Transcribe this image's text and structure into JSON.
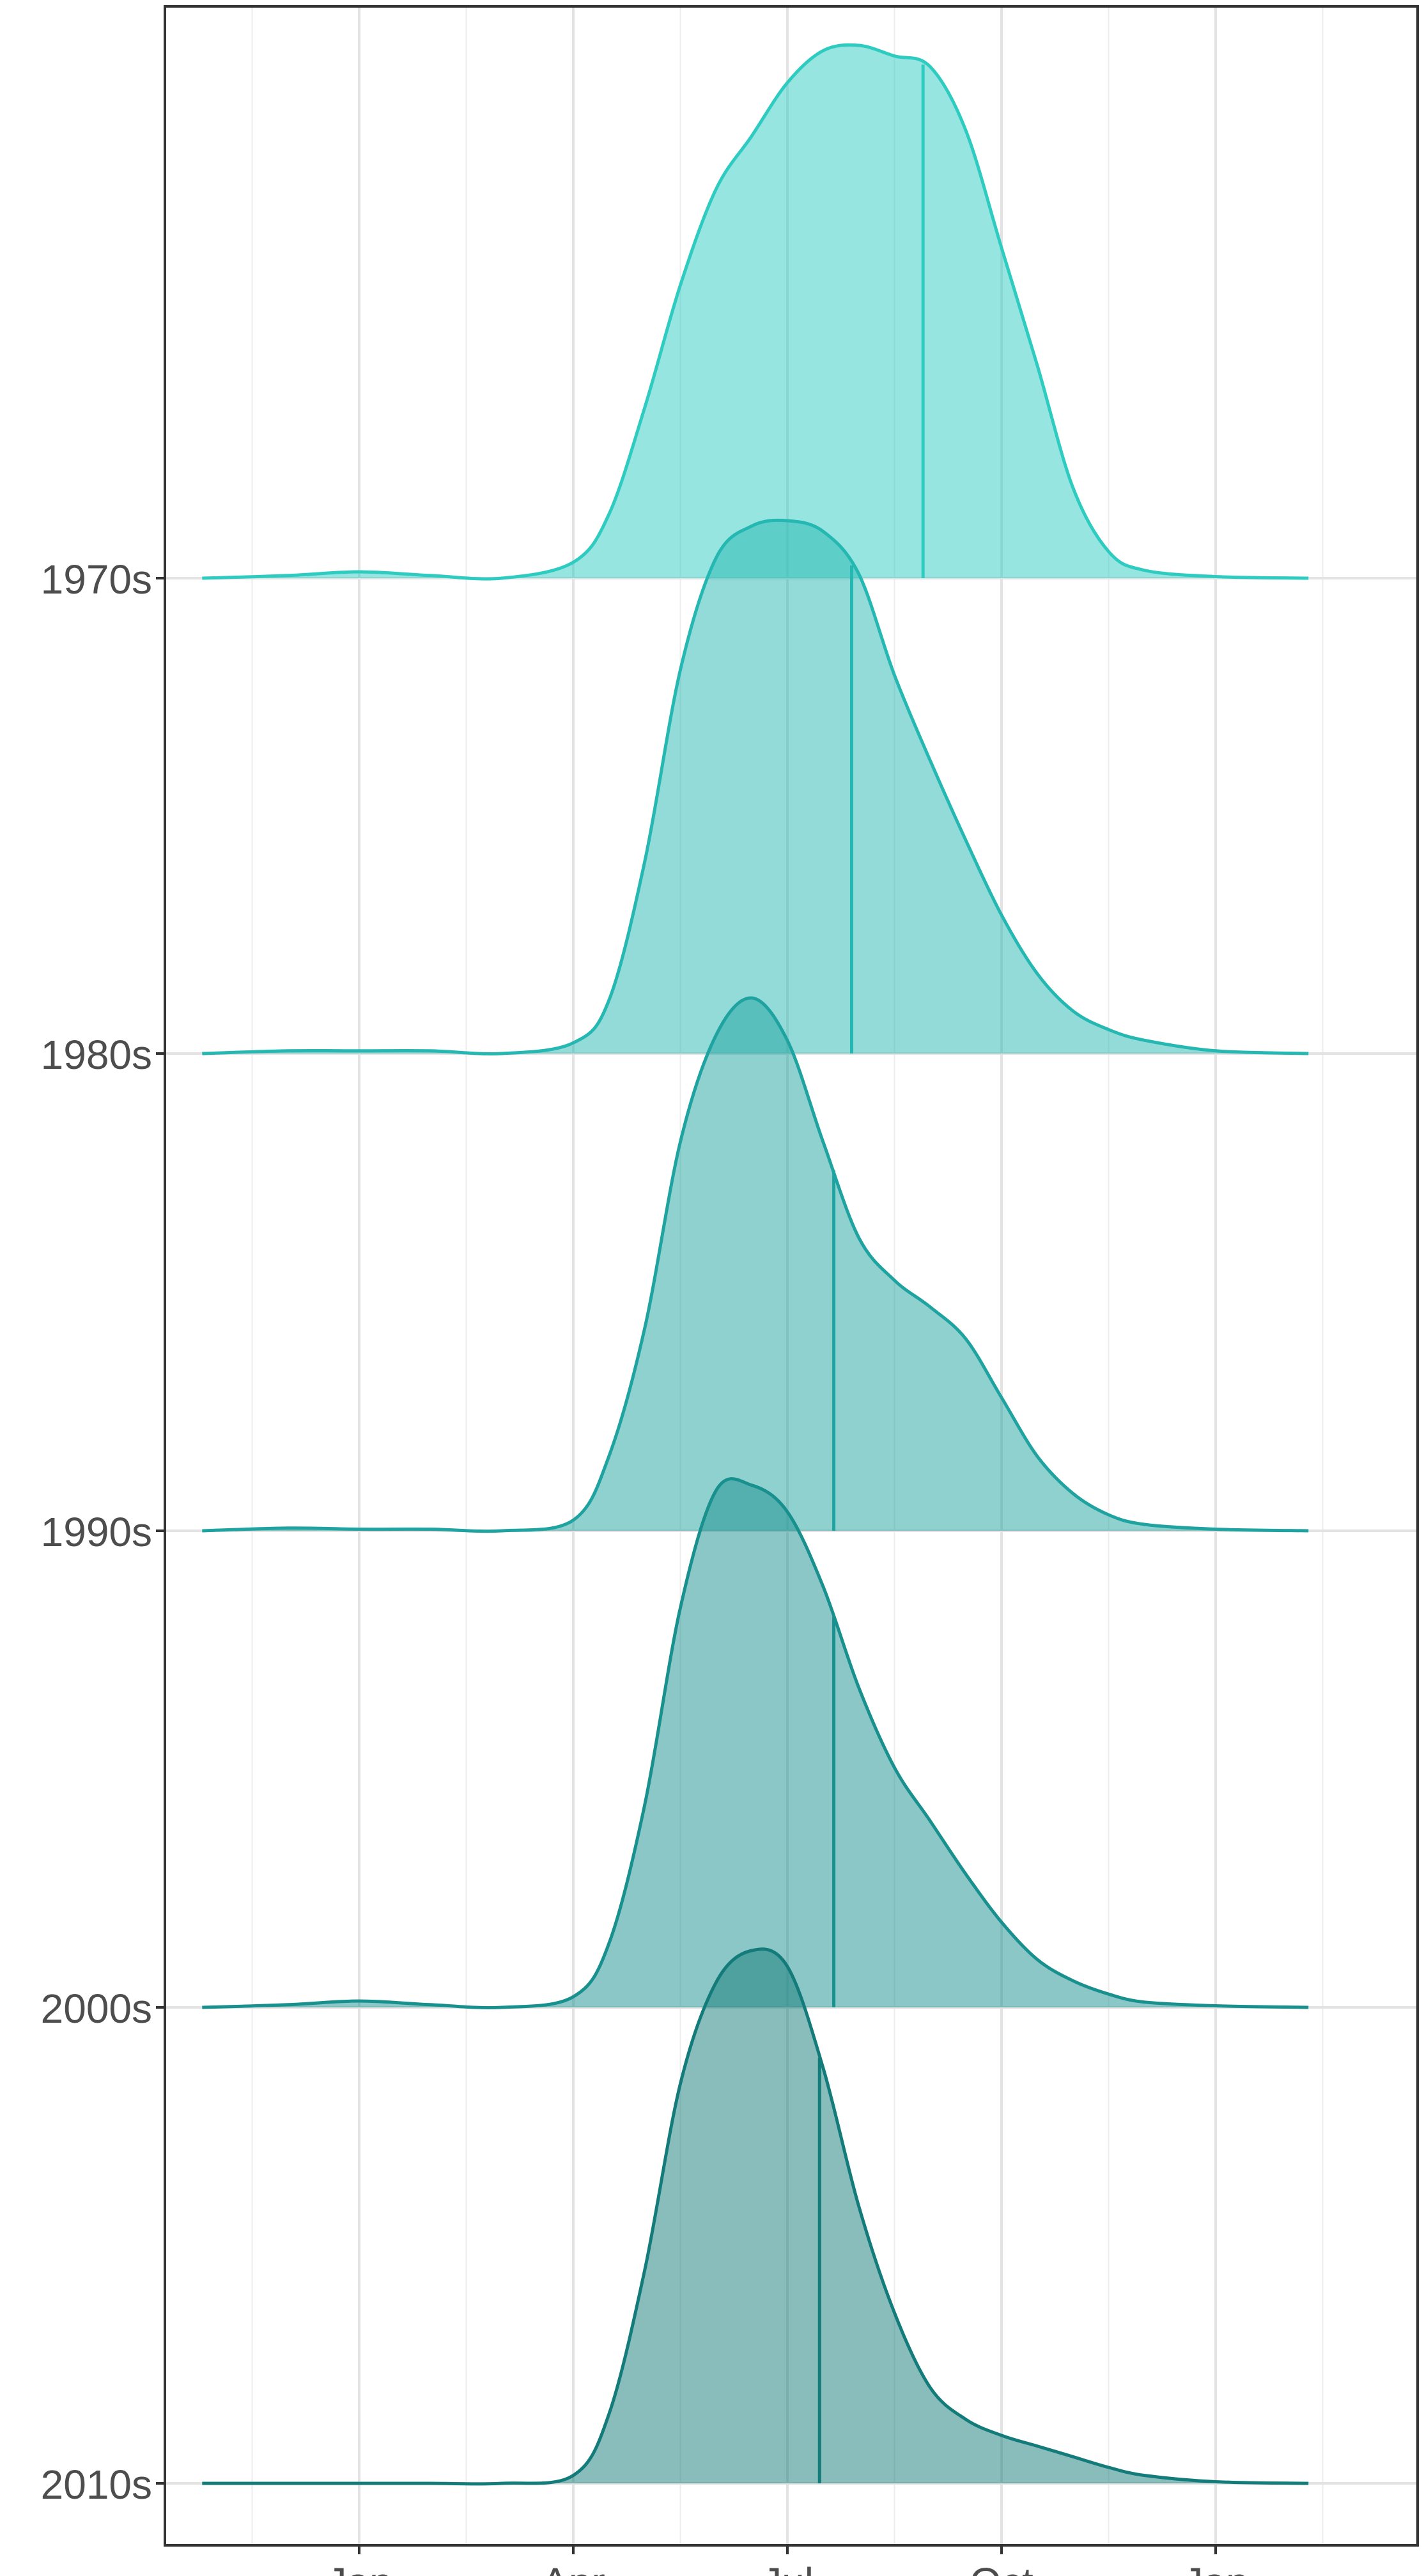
{
  "chart_data": {
    "type": "area",
    "subtype": "ridgeline-density",
    "title": "",
    "xlabel": "",
    "ylabel": "",
    "x_ticks": [
      "Jan",
      "Apr",
      "Jul",
      "Oct",
      "Jan"
    ],
    "y_ticks": [
      "1970s",
      "1980s",
      "1990s",
      "2000s",
      "2010s"
    ],
    "grid": true,
    "legend": "none",
    "series": [
      {
        "name": "1970s",
        "color": "#2ECBC1",
        "median_month": 8.9,
        "points": [
          [
            -1.2,
            0
          ],
          [
            0,
            0.005
          ],
          [
            1,
            0.012
          ],
          [
            2,
            0.005
          ],
          [
            3,
            0
          ],
          [
            4,
            0.03
          ],
          [
            4.5,
            0.12
          ],
          [
            5,
            0.32
          ],
          [
            5.5,
            0.55
          ],
          [
            6,
            0.73
          ],
          [
            6.5,
            0.83
          ],
          [
            7,
            0.93
          ],
          [
            7.5,
            0.99
          ],
          [
            8,
            1.0
          ],
          [
            8.5,
            0.98
          ],
          [
            9,
            0.96
          ],
          [
            9.5,
            0.84
          ],
          [
            10,
            0.62
          ],
          [
            10.5,
            0.4
          ],
          [
            11,
            0.17
          ],
          [
            11.5,
            0.05
          ],
          [
            12,
            0.015
          ],
          [
            13,
            0.003
          ],
          [
            14.3,
            0
          ]
        ]
      },
      {
        "name": "1980s",
        "color": "#25B7B1",
        "median_month": 7.9,
        "points": [
          [
            -1.2,
            0
          ],
          [
            0,
            0.005
          ],
          [
            1,
            0.005
          ],
          [
            2,
            0.005
          ],
          [
            3,
            0
          ],
          [
            4,
            0.02
          ],
          [
            4.5,
            0.1
          ],
          [
            5,
            0.36
          ],
          [
            5.5,
            0.72
          ],
          [
            6,
            0.93
          ],
          [
            6.5,
            0.99
          ],
          [
            7,
            1.0
          ],
          [
            7.5,
            0.98
          ],
          [
            8,
            0.9
          ],
          [
            8.5,
            0.71
          ],
          [
            9,
            0.55
          ],
          [
            9.5,
            0.4
          ],
          [
            10,
            0.26
          ],
          [
            10.5,
            0.15
          ],
          [
            11,
            0.08
          ],
          [
            11.5,
            0.045
          ],
          [
            12,
            0.025
          ],
          [
            13,
            0.005
          ],
          [
            14.3,
            0
          ]
        ]
      },
      {
        "name": "1990s",
        "color": "#1FA3A0",
        "median_month": 7.65,
        "points": [
          [
            -1.2,
            0
          ],
          [
            0,
            0.005
          ],
          [
            1,
            0.003
          ],
          [
            2,
            0.003
          ],
          [
            3,
            0
          ],
          [
            4,
            0.02
          ],
          [
            4.5,
            0.14
          ],
          [
            5,
            0.38
          ],
          [
            5.5,
            0.73
          ],
          [
            6,
            0.93
          ],
          [
            6.5,
            1.0
          ],
          [
            7,
            0.92
          ],
          [
            7.5,
            0.73
          ],
          [
            8,
            0.55
          ],
          [
            8.5,
            0.47
          ],
          [
            9,
            0.42
          ],
          [
            9.5,
            0.36
          ],
          [
            10,
            0.25
          ],
          [
            10.5,
            0.14
          ],
          [
            11,
            0.07
          ],
          [
            11.5,
            0.03
          ],
          [
            12,
            0.012
          ],
          [
            13,
            0.003
          ],
          [
            14.3,
            0
          ]
        ]
      },
      {
        "name": "2000s",
        "color": "#18908E",
        "median_month": 7.65,
        "points": [
          [
            -1.2,
            0
          ],
          [
            0,
            0.005
          ],
          [
            1,
            0.012
          ],
          [
            2,
            0.005
          ],
          [
            3,
            0
          ],
          [
            4,
            0.02
          ],
          [
            4.5,
            0.12
          ],
          [
            5,
            0.38
          ],
          [
            5.5,
            0.75
          ],
          [
            6,
            0.97
          ],
          [
            6.5,
            0.98
          ],
          [
            7,
            0.93
          ],
          [
            7.5,
            0.79
          ],
          [
            8,
            0.6
          ],
          [
            8.5,
            0.45
          ],
          [
            9,
            0.35
          ],
          [
            9.5,
            0.25
          ],
          [
            10,
            0.16
          ],
          [
            10.5,
            0.09
          ],
          [
            11,
            0.05
          ],
          [
            11.5,
            0.025
          ],
          [
            12,
            0.01
          ],
          [
            13,
            0.003
          ],
          [
            14.3,
            0
          ]
        ]
      },
      {
        "name": "2010s",
        "color": "#137C7A",
        "median_month": 7.45,
        "points": [
          [
            -1.2,
            0
          ],
          [
            0,
            0
          ],
          [
            1,
            0
          ],
          [
            2,
            0
          ],
          [
            3,
            0
          ],
          [
            4,
            0.015
          ],
          [
            4.5,
            0.13
          ],
          [
            5,
            0.4
          ],
          [
            5.5,
            0.75
          ],
          [
            6,
            0.94
          ],
          [
            6.5,
            1.0
          ],
          [
            7,
            0.97
          ],
          [
            7.5,
            0.78
          ],
          [
            8,
            0.52
          ],
          [
            8.5,
            0.32
          ],
          [
            9,
            0.18
          ],
          [
            9.5,
            0.12
          ],
          [
            10,
            0.09
          ],
          [
            10.5,
            0.07
          ],
          [
            11,
            0.05
          ],
          [
            11.5,
            0.03
          ],
          [
            12,
            0.015
          ],
          [
            13,
            0.003
          ],
          [
            14.3,
            0
          ]
        ]
      }
    ]
  }
}
